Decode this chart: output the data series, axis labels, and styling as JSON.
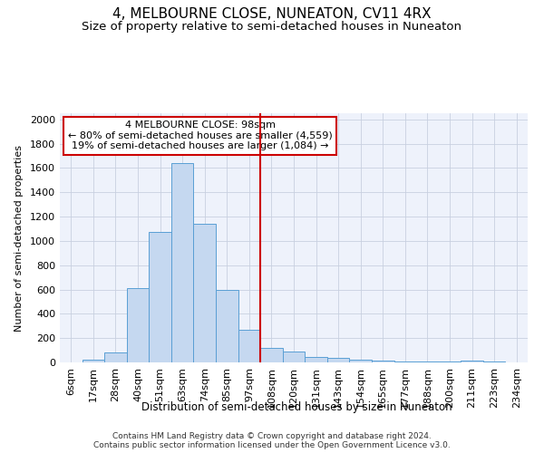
{
  "title": "4, MELBOURNE CLOSE, NUNEATON, CV11 4RX",
  "subtitle": "Size of property relative to semi-detached houses in Nuneaton",
  "xlabel": "Distribution of semi-detached houses by size in Nuneaton",
  "ylabel": "Number of semi-detached properties",
  "footer1": "Contains HM Land Registry data © Crown copyright and database right 2024.",
  "footer2": "Contains public sector information licensed under the Open Government Licence v3.0.",
  "annotation_line1": "4 MELBOURNE CLOSE: 98sqm",
  "annotation_line2": "← 80% of semi-detached houses are smaller (4,559)",
  "annotation_line3": "19% of semi-detached houses are larger (1,084) →",
  "bar_labels": [
    "6sqm",
    "17sqm",
    "28sqm",
    "40sqm",
    "51sqm",
    "63sqm",
    "74sqm",
    "85sqm",
    "97sqm",
    "108sqm",
    "120sqm",
    "131sqm",
    "143sqm",
    "154sqm",
    "165sqm",
    "177sqm",
    "188sqm",
    "200sqm",
    "211sqm",
    "223sqm",
    "234sqm"
  ],
  "bar_values": [
    0,
    20,
    80,
    610,
    1070,
    1640,
    1140,
    600,
    270,
    120,
    90,
    45,
    35,
    20,
    15,
    10,
    5,
    5,
    15,
    5,
    0
  ],
  "bar_color": "#c5d8f0",
  "bar_edge_color": "#5a9fd4",
  "vline_color": "#cc0000",
  "ylim": [
    0,
    2050
  ],
  "yticks": [
    0,
    200,
    400,
    600,
    800,
    1000,
    1200,
    1400,
    1600,
    1800,
    2000
  ],
  "grid_color": "#c8d0e0",
  "bg_color": "#eef2fb",
  "title_fontsize": 11,
  "subtitle_fontsize": 9.5,
  "tick_fontsize": 8,
  "annotation_box_color": "#cc0000",
  "annotation_fontsize": 8
}
